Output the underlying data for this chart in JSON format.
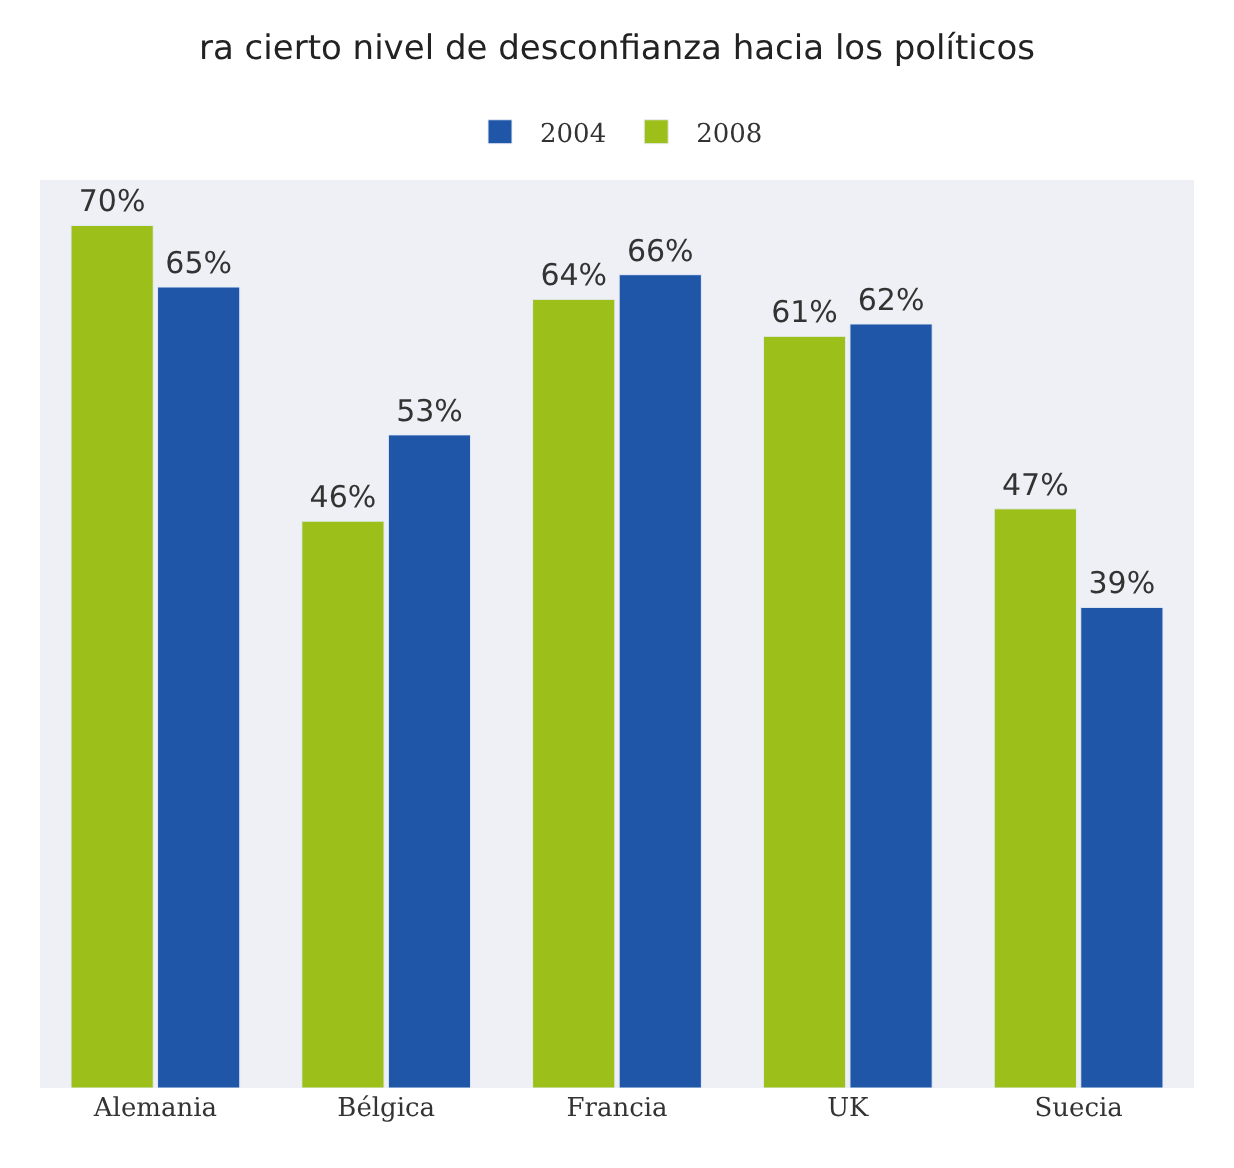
{
  "chart_data": {
    "type": "bar",
    "title": "ra cierto nivel de desconfianza hacia los políticos",
    "categories": [
      "Alemania",
      "Bélgica",
      "Francia",
      "UK",
      "Suecia"
    ],
    "series": [
      {
        "name": "2008",
        "color": "#9cbf1a",
        "values": [
          70,
          46,
          64,
          61,
          47
        ],
        "value_labels": [
          "70%",
          "46%",
          "64%",
          "61%",
          "47%"
        ]
      },
      {
        "name": "2004",
        "color": "#1f56a8",
        "values": [
          65,
          53,
          66,
          62,
          39
        ],
        "value_labels": [
          "65%",
          "53%",
          "66%",
          "62%",
          "39%"
        ]
      }
    ],
    "legend": "top"
  }
}
